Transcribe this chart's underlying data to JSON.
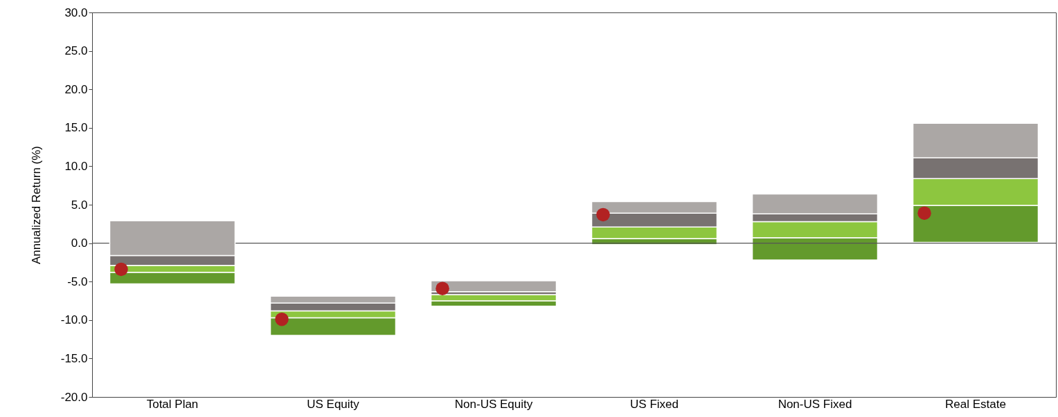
{
  "chart_data": {
    "type": "bar",
    "ylabel": "Annualized Return (%)",
    "categories": [
      "Total Plan",
      "US Equity",
      "Non-US Equity",
      "US Fixed",
      "Non-US Fixed",
      "Real Estate"
    ],
    "series": [
      {
        "color": "#639a2c",
        "base": [
          -5.3,
          -12.0,
          -8.2,
          -0.2,
          -2.2,
          0.1
        ],
        "values": [
          1.5,
          2.3,
          0.7,
          0.8,
          2.9,
          4.8
        ]
      },
      {
        "color": "#8dc63f",
        "base": [
          -3.8,
          -9.7,
          -7.5,
          0.6,
          0.7,
          4.9
        ],
        "values": [
          0.9,
          0.9,
          0.8,
          1.5,
          2.1,
          3.5
        ]
      },
      {
        "color": "#787271",
        "base": [
          -2.9,
          -8.8,
          -6.7,
          2.1,
          2.8,
          8.4
        ],
        "values": [
          1.3,
          1.0,
          0.4,
          1.8,
          1.0,
          2.7
        ]
      },
      {
        "color": "#aba7a5",
        "base": [
          -1.6,
          -7.8,
          -6.3,
          3.9,
          3.8,
          11.1
        ],
        "values": [
          4.5,
          0.9,
          1.4,
          1.5,
          2.6,
          4.5
        ]
      },
      {
        "type": "scatter",
        "color": "#b22222",
        "x": [
          "Total Plan",
          "US Equity",
          "Non-US Equity",
          "US Fixed",
          "Non-US Fixed",
          "Real Estate"
        ],
        "values": [
          -3.4,
          -9.9,
          -5.9,
          3.7,
          null,
          3.9
        ]
      }
    ],
    "ylim": [
      -20,
      30
    ],
    "yticks": [
      {
        "value": -20,
        "label": "-20.0"
      },
      {
        "value": -15,
        "label": "-15.0"
      },
      {
        "value": -10,
        "label": "-10.0"
      },
      {
        "value": -5,
        "label": "-5.0"
      },
      {
        "value": 0,
        "label": "0.0"
      },
      {
        "value": 5,
        "label": "5.0"
      },
      {
        "value": 10,
        "label": "10.0"
      },
      {
        "value": 15,
        "label": "15.0"
      },
      {
        "value": 20,
        "label": "20.0"
      },
      {
        "value": 25,
        "label": "25.0"
      },
      {
        "value": 30,
        "label": "30.0"
      }
    ],
    "ref_lines": [
      {
        "axis": "y",
        "value": 0,
        "color": "#555555"
      }
    ],
    "grid": false,
    "legend": false,
    "marker": "circle"
  }
}
